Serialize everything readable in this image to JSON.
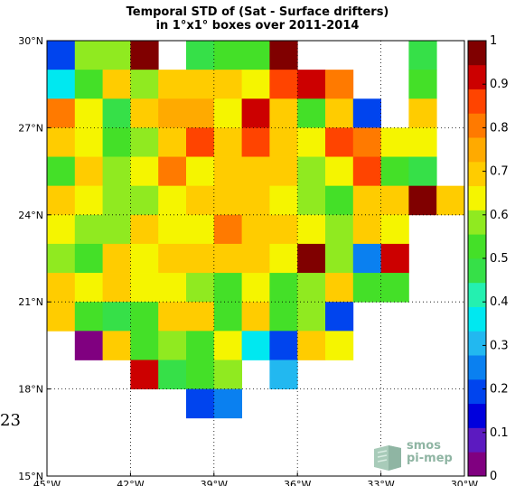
{
  "chart_data": {
    "type": "heatmap",
    "title": "Temporal STD of (Sat - Surface drifters)\nin 1°x1° boxes over 2011-2014",
    "x_ticks": [
      "45°W",
      "42°W",
      "39°W",
      "36°W",
      "33°W",
      "30°W"
    ],
    "y_ticks": [
      "15°N",
      "18°N",
      "21°N",
      "24°N",
      "27°N",
      "30°N"
    ],
    "x_range": [
      -45,
      -30
    ],
    "y_range": [
      15,
      30
    ],
    "color_range": [
      0,
      1
    ],
    "colorbar_ticks": [
      "0",
      "0.1",
      "0.2",
      "0.3",
      "0.4",
      "0.5",
      "0.6",
      "0.7",
      "0.8",
      "0.9",
      "1"
    ],
    "colormap": [
      "#800080",
      "#5c1ac0",
      "#0000dd",
      "#0044ee",
      "#0a80f0",
      "#22b8f0",
      "#00e8f0",
      "#24f0b0",
      "#36e048",
      "#44e028",
      "#90ea20",
      "#f5f500",
      "#ffcc00",
      "#ffaa00",
      "#ff7a00",
      "#ff4400",
      "#cc0000",
      "#800000"
    ],
    "grid_lines": "dotted",
    "rows": [
      {
        "lat": 29.5,
        "values": [
          0.21,
          0.58,
          0.58,
          1.0,
          null,
          0.45,
          0.5,
          0.55,
          1.0,
          null,
          null,
          null,
          null,
          0.45,
          null
        ]
      },
      {
        "lat": 28.5,
        "values": [
          0.38,
          0.52,
          0.68,
          0.58,
          0.67,
          0.72,
          0.72,
          0.62,
          0.85,
          0.92,
          0.8,
          null,
          null,
          0.52,
          null
        ]
      },
      {
        "lat": 27.5,
        "values": [
          0.8,
          0.62,
          0.45,
          0.68,
          0.73,
          0.73,
          0.62,
          0.92,
          0.68,
          0.5,
          0.67,
          0.18,
          null,
          0.7,
          null
        ]
      },
      {
        "lat": 26.5,
        "values": [
          0.72,
          0.62,
          0.52,
          0.58,
          0.67,
          0.85,
          0.68,
          0.85,
          0.7,
          0.62,
          0.85,
          0.78,
          0.62,
          0.62,
          null
        ]
      },
      {
        "lat": 25.5,
        "values": [
          0.52,
          0.67,
          0.58,
          0.62,
          0.8,
          0.62,
          0.72,
          0.72,
          0.72,
          0.58,
          0.62,
          0.85,
          0.52,
          0.45,
          null
        ]
      },
      {
        "lat": 24.5,
        "values": [
          0.7,
          0.62,
          0.58,
          0.58,
          0.62,
          0.67,
          0.7,
          0.67,
          0.62,
          0.58,
          0.52,
          0.72,
          0.72,
          1.0,
          0.7
        ]
      },
      {
        "lat": 23.5,
        "values": [
          0.62,
          0.58,
          0.58,
          0.67,
          0.62,
          0.62,
          0.8,
          0.67,
          0.67,
          0.62,
          0.58,
          0.72,
          0.62,
          null,
          null
        ]
      },
      {
        "lat": 22.5,
        "values": [
          0.58,
          0.5,
          0.67,
          0.62,
          0.67,
          0.72,
          0.72,
          0.67,
          0.62,
          1.0,
          0.58,
          0.25,
          0.92,
          null,
          null
        ]
      },
      {
        "lat": 21.5,
        "values": [
          0.67,
          0.62,
          0.67,
          0.62,
          0.62,
          0.58,
          0.5,
          0.62,
          0.5,
          0.58,
          0.67,
          0.5,
          0.5,
          null,
          null
        ]
      },
      {
        "lat": 20.5,
        "values": [
          0.67,
          0.5,
          0.45,
          0.5,
          0.72,
          0.72,
          0.5,
          0.67,
          0.5,
          0.58,
          0.21,
          null,
          null,
          null,
          null
        ]
      },
      {
        "lat": 19.5,
        "values": [
          null,
          0.0,
          0.72,
          0.5,
          0.58,
          0.5,
          0.62,
          0.38,
          0.21,
          0.67,
          0.62,
          null,
          null,
          null,
          null
        ]
      },
      {
        "lat": 18.5,
        "values": [
          null,
          null,
          null,
          0.92,
          0.45,
          0.5,
          0.58,
          null,
          0.32,
          null,
          null,
          null,
          null,
          null,
          null
        ]
      },
      {
        "lat": 17.5,
        "values": [
          null,
          null,
          null,
          null,
          null,
          0.18,
          0.25,
          null,
          null,
          null,
          null,
          null,
          null,
          null,
          null
        ]
      }
    ]
  },
  "side_label": "23",
  "logo": {
    "line1": "smos",
    "line2": "pi-mep"
  }
}
